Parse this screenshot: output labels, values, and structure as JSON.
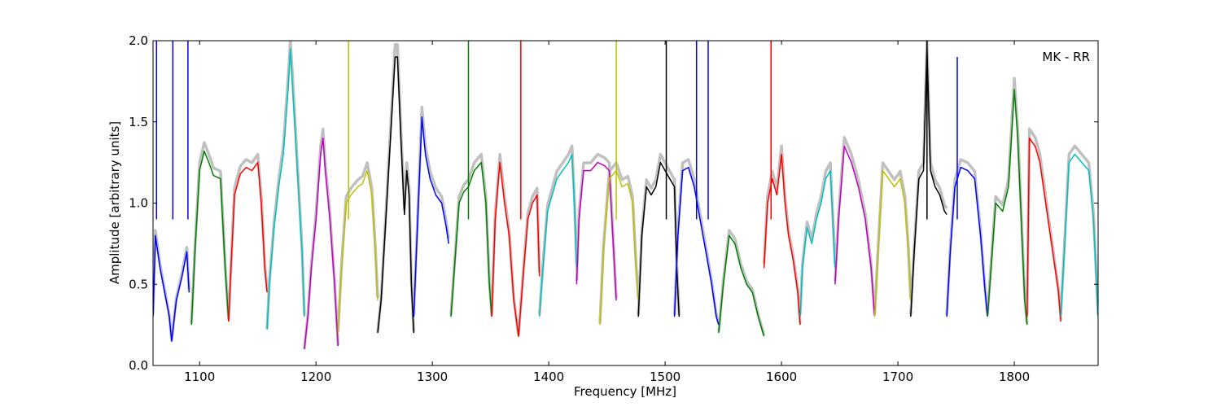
{
  "chart_data": {
    "type": "line",
    "title": "",
    "annotation": "MK - RR",
    "xlabel": "Frequency [MHz]",
    "ylabel": "Amplitude [arbitrary units]",
    "xlim": [
      1060,
      1872
    ],
    "ylim": [
      0.0,
      2.0
    ],
    "xticks": [
      1100,
      1200,
      1300,
      1400,
      1500,
      1600,
      1700,
      1800
    ],
    "yticks": [
      0.0,
      0.5,
      1.0,
      1.5,
      2.0
    ],
    "xtick_labels": [
      "1100",
      "1200",
      "1300",
      "1400",
      "1500",
      "1600",
      "1700",
      "1800"
    ],
    "ytick_labels": [
      "0.0",
      "0.5",
      "1.0",
      "1.5",
      "2.0"
    ],
    "grid": false,
    "background_color": "#c0c0c0",
    "series": [
      {
        "color": "#0000ff",
        "points": [
          [
            1060,
            0.3
          ],
          [
            1062,
            0.8
          ],
          [
            1066,
            0.6
          ],
          [
            1070,
            0.45
          ],
          [
            1074,
            0.3
          ],
          [
            1076,
            0.15
          ],
          [
            1080,
            0.4
          ],
          [
            1085,
            0.55
          ],
          [
            1089,
            0.7
          ],
          [
            1091,
            0.45
          ]
        ]
      },
      {
        "color": "#008000",
        "points": [
          [
            1093,
            0.25
          ],
          [
            1096,
            0.7
          ],
          [
            1100,
            1.2
          ],
          [
            1104,
            1.32
          ],
          [
            1108,
            1.25
          ],
          [
            1112,
            1.17
          ],
          [
            1118,
            1.15
          ],
          [
            1122,
            0.6
          ],
          [
            1125,
            0.27
          ]
        ]
      },
      {
        "color": "#ff0000",
        "points": [
          [
            1125,
            0.27
          ],
          [
            1127,
            0.6
          ],
          [
            1130,
            1.05
          ],
          [
            1135,
            1.18
          ],
          [
            1140,
            1.22
          ],
          [
            1145,
            1.2
          ],
          [
            1150,
            1.25
          ],
          [
            1153,
            1.0
          ],
          [
            1156,
            0.6
          ],
          [
            1158,
            0.45
          ]
        ]
      },
      {
        "color": "#00bfbf",
        "points": [
          [
            1158,
            0.22
          ],
          [
            1160,
            0.5
          ],
          [
            1164,
            0.85
          ],
          [
            1168,
            1.1
          ],
          [
            1172,
            1.3
          ],
          [
            1176,
            1.7
          ],
          [
            1178,
            1.95
          ],
          [
            1180,
            1.7
          ],
          [
            1184,
            1.2
          ],
          [
            1188,
            0.7
          ],
          [
            1190,
            0.3
          ]
        ]
      },
      {
        "color": "#bf00bf",
        "points": [
          [
            1190,
            0.1
          ],
          [
            1193,
            0.3
          ],
          [
            1196,
            0.6
          ],
          [
            1200,
            0.9
          ],
          [
            1204,
            1.3
          ],
          [
            1206,
            1.4
          ],
          [
            1208,
            1.2
          ],
          [
            1212,
            0.9
          ],
          [
            1216,
            0.5
          ],
          [
            1219,
            0.12
          ]
        ]
      },
      {
        "color": "#bfbf00",
        "points": [
          [
            1219,
            0.2
          ],
          [
            1222,
            0.6
          ],
          [
            1226,
            1.0
          ],
          [
            1230,
            1.05
          ],
          [
            1236,
            1.1
          ],
          [
            1240,
            1.12
          ],
          [
            1244,
            1.2
          ],
          [
            1248,
            1.05
          ],
          [
            1251,
            0.7
          ],
          [
            1253,
            0.4
          ]
        ]
      },
      {
        "color": "#000000",
        "points": [
          [
            1253,
            0.2
          ],
          [
            1256,
            0.4
          ],
          [
            1260,
            0.9
          ],
          [
            1264,
            1.4
          ],
          [
            1268,
            1.9
          ],
          [
            1270,
            1.9
          ],
          [
            1273,
            1.4
          ],
          [
            1276,
            0.93
          ],
          [
            1278,
            1.2
          ],
          [
            1280,
            1.05
          ],
          [
            1282,
            0.5
          ],
          [
            1284,
            0.2
          ]
        ]
      },
      {
        "color": "#0000ff",
        "points": [
          [
            1284,
            0.3
          ],
          [
            1288,
            1.0
          ],
          [
            1291,
            1.53
          ],
          [
            1294,
            1.3
          ],
          [
            1298,
            1.15
          ],
          [
            1303,
            1.05
          ],
          [
            1308,
            1.0
          ],
          [
            1312,
            0.85
          ],
          [
            1314,
            0.75
          ]
        ]
      },
      {
        "color": "#008000",
        "points": [
          [
            1316,
            0.3
          ],
          [
            1319,
            0.6
          ],
          [
            1323,
            1.0
          ],
          [
            1327,
            1.07
          ],
          [
            1331,
            1.1
          ],
          [
            1336,
            1.2
          ],
          [
            1342,
            1.25
          ],
          [
            1346,
            1.0
          ],
          [
            1349,
            0.5
          ],
          [
            1351,
            0.3
          ]
        ]
      },
      {
        "color": "#ff0000",
        "points": [
          [
            1351,
            0.3
          ],
          [
            1354,
            0.9
          ],
          [
            1358,
            1.25
          ],
          [
            1362,
            1.0
          ],
          [
            1366,
            0.8
          ],
          [
            1370,
            0.4
          ],
          [
            1374,
            0.18
          ],
          [
            1378,
            0.55
          ],
          [
            1382,
            0.9
          ],
          [
            1386,
            1.0
          ],
          [
            1390,
            1.05
          ],
          [
            1392,
            0.55
          ]
        ]
      },
      {
        "color": "#00bfbf",
        "points": [
          [
            1392,
            0.3
          ],
          [
            1395,
            0.6
          ],
          [
            1399,
            0.95
          ],
          [
            1403,
            1.05
          ],
          [
            1407,
            1.15
          ],
          [
            1412,
            1.2
          ],
          [
            1417,
            1.25
          ],
          [
            1420,
            1.3
          ],
          [
            1422,
            1.0
          ],
          [
            1424,
            0.6
          ]
        ]
      },
      {
        "color": "#bf00bf",
        "points": [
          [
            1424,
            0.5
          ],
          [
            1426,
            0.9
          ],
          [
            1430,
            1.2
          ],
          [
            1436,
            1.2
          ],
          [
            1442,
            1.25
          ],
          [
            1448,
            1.23
          ],
          [
            1452,
            1.2
          ],
          [
            1455,
            0.8
          ],
          [
            1458,
            0.4
          ]
        ]
      },
      {
        "color": "#bfbf00",
        "points": [
          [
            1444,
            0.25
          ],
          [
            1447,
            0.7
          ],
          [
            1452,
            1.15
          ],
          [
            1458,
            1.2
          ],
          [
            1463,
            1.1
          ],
          [
            1468,
            1.12
          ],
          [
            1472,
            1.0
          ],
          [
            1475,
            0.6
          ],
          [
            1477,
            0.4
          ]
        ]
      },
      {
        "color": "#000000",
        "points": [
          [
            1477,
            0.3
          ],
          [
            1480,
            0.8
          ],
          [
            1484,
            1.1
          ],
          [
            1488,
            1.05
          ],
          [
            1492,
            1.1
          ],
          [
            1496,
            1.25
          ],
          [
            1500,
            1.2
          ],
          [
            1504,
            1.15
          ],
          [
            1508,
            1.1
          ],
          [
            1510,
            0.6
          ],
          [
            1512,
            0.3
          ]
        ]
      },
      {
        "color": "#0000ff",
        "points": [
          [
            1508,
            0.3
          ],
          [
            1511,
            0.8
          ],
          [
            1515,
            1.2
          ],
          [
            1520,
            1.22
          ],
          [
            1525,
            1.1
          ],
          [
            1530,
            0.9
          ],
          [
            1535,
            0.7
          ],
          [
            1540,
            0.5
          ],
          [
            1544,
            0.3
          ],
          [
            1546,
            0.25
          ]
        ]
      },
      {
        "color": "#008000",
        "points": [
          [
            1546,
            0.2
          ],
          [
            1550,
            0.5
          ],
          [
            1555,
            0.8
          ],
          [
            1560,
            0.75
          ],
          [
            1565,
            0.6
          ],
          [
            1570,
            0.5
          ],
          [
            1575,
            0.45
          ],
          [
            1580,
            0.3
          ],
          [
            1585,
            0.18
          ]
        ]
      },
      {
        "color": "#ff0000",
        "points": [
          [
            1585,
            0.6
          ],
          [
            1588,
            1.0
          ],
          [
            1592,
            1.15
          ],
          [
            1596,
            1.05
          ],
          [
            1600,
            1.3
          ],
          [
            1603,
            1.0
          ],
          [
            1606,
            0.8
          ],
          [
            1610,
            0.65
          ],
          [
            1614,
            0.45
          ],
          [
            1616,
            0.25
          ]
        ]
      },
      {
        "color": "#00bfbf",
        "points": [
          [
            1616,
            0.3
          ],
          [
            1618,
            0.6
          ],
          [
            1622,
            0.85
          ],
          [
            1626,
            0.75
          ],
          [
            1630,
            0.9
          ],
          [
            1634,
            1.0
          ],
          [
            1638,
            1.15
          ],
          [
            1642,
            1.2
          ],
          [
            1644,
            0.9
          ],
          [
            1646,
            0.6
          ]
        ]
      },
      {
        "color": "#bf00bf",
        "points": [
          [
            1646,
            0.5
          ],
          [
            1649,
            0.9
          ],
          [
            1654,
            1.35
          ],
          [
            1660,
            1.25
          ],
          [
            1666,
            1.1
          ],
          [
            1672,
            0.9
          ],
          [
            1677,
            0.6
          ],
          [
            1680,
            0.3
          ]
        ]
      },
      {
        "color": "#bfbf00",
        "points": [
          [
            1680,
            0.3
          ],
          [
            1683,
            0.7
          ],
          [
            1687,
            1.2
          ],
          [
            1692,
            1.15
          ],
          [
            1697,
            1.1
          ],
          [
            1702,
            1.15
          ],
          [
            1706,
            1.0
          ],
          [
            1709,
            0.7
          ],
          [
            1711,
            0.4
          ]
        ]
      },
      {
        "color": "#000000",
        "points": [
          [
            1711,
            0.3
          ],
          [
            1714,
            0.7
          ],
          [
            1718,
            1.15
          ],
          [
            1722,
            1.2
          ],
          [
            1725,
            1.95
          ],
          [
            1728,
            1.2
          ],
          [
            1732,
            1.1
          ],
          [
            1736,
            1.05
          ],
          [
            1740,
            0.95
          ],
          [
            1742,
            0.93
          ]
        ]
      },
      {
        "color": "#0000ff",
        "points": [
          [
            1742,
            0.3
          ],
          [
            1745,
            0.7
          ],
          [
            1749,
            1.1
          ],
          [
            1754,
            1.22
          ],
          [
            1760,
            1.2
          ],
          [
            1766,
            1.15
          ],
          [
            1771,
            0.8
          ],
          [
            1775,
            0.45
          ],
          [
            1777,
            0.3
          ]
        ]
      },
      {
        "color": "#008000",
        "points": [
          [
            1777,
            0.3
          ],
          [
            1780,
            0.6
          ],
          [
            1784,
            1.0
          ],
          [
            1790,
            0.95
          ],
          [
            1795,
            1.1
          ],
          [
            1800,
            1.7
          ],
          [
            1803,
            1.4
          ],
          [
            1806,
            0.9
          ],
          [
            1809,
            0.4
          ],
          [
            1811,
            0.25
          ]
        ]
      },
      {
        "color": "#ff0000",
        "points": [
          [
            1811,
            0.3
          ],
          [
            1813,
            1.4
          ],
          [
            1818,
            1.35
          ],
          [
            1822,
            1.25
          ],
          [
            1826,
            1.05
          ],
          [
            1830,
            0.85
          ],
          [
            1834,
            0.65
          ],
          [
            1838,
            0.45
          ],
          [
            1840,
            0.27
          ]
        ]
      },
      {
        "color": "#00bfbf",
        "points": [
          [
            1840,
            0.3
          ],
          [
            1843,
            0.7
          ],
          [
            1847,
            1.25
          ],
          [
            1852,
            1.3
          ],
          [
            1858,
            1.25
          ],
          [
            1864,
            1.2
          ],
          [
            1868,
            0.9
          ],
          [
            1872,
            0.3
          ]
        ]
      }
    ],
    "spikes": [
      {
        "color": "#0000ff",
        "x": 1063,
        "y": 2.0
      },
      {
        "color": "#0000ff",
        "x": 1077,
        "y": 2.0
      },
      {
        "color": "#0000ff",
        "x": 1090,
        "y": 2.0
      },
      {
        "color": "#bfbf00",
        "x": 1228,
        "y": 2.0
      },
      {
        "color": "#008000",
        "x": 1331,
        "y": 2.0
      },
      {
        "color": "#ff0000",
        "x": 1376,
        "y": 2.0
      },
      {
        "color": "#bfbf00",
        "x": 1458,
        "y": 2.0
      },
      {
        "color": "#000000",
        "x": 1501,
        "y": 2.0
      },
      {
        "color": "#0000ff",
        "x": 1527,
        "y": 2.0
      },
      {
        "color": "#0000ff",
        "x": 1537,
        "y": 2.0
      },
      {
        "color": "#ff0000",
        "x": 1591,
        "y": 2.0
      },
      {
        "color": "#000000",
        "x": 1725,
        "y": 2.0
      },
      {
        "color": "#0000ff",
        "x": 1751,
        "y": 1.9
      }
    ]
  }
}
